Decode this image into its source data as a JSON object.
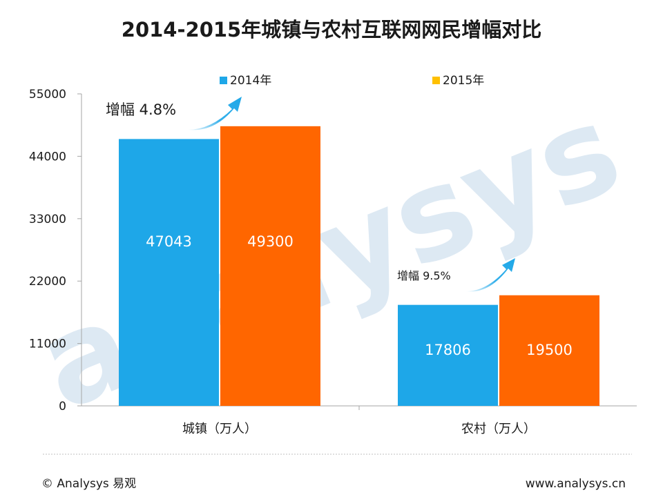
{
  "chart_data": {
    "type": "bar",
    "title": "2014-2015年城镇与农村互联网网民增幅对比",
    "categories": [
      "城镇（万人）",
      "农村（万人）"
    ],
    "series": [
      {
        "name": "2014年",
        "values": [
          47043,
          17806
        ]
      },
      {
        "name": "2015年",
        "values": [
          49300,
          19500
        ]
      }
    ],
    "ylim": [
      0,
      55000
    ],
    "yticks": [
      0,
      11000,
      22000,
      33000,
      44000,
      55000
    ],
    "xlabel": "",
    "ylabel": "",
    "grid": false,
    "legend_position": "top",
    "annotations": [
      "增幅 4.8%",
      "增幅 9.5%"
    ]
  },
  "colors": {
    "series_2014": "#1ea7e8",
    "series_2015": "#ff6600",
    "legend_2015_swatch": "#ffc000",
    "arrow": "#1ea7e8",
    "watermark": "#dde9f3"
  },
  "watermark_text": "analysys",
  "footer": {
    "left": "© Analysys 易观",
    "right": "www.analysys.cn"
  }
}
